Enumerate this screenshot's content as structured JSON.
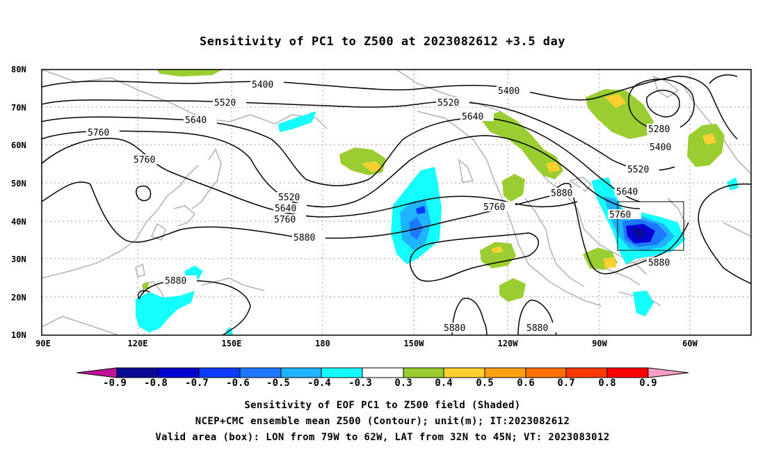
{
  "title": "Sensitivity of PC1 to Z500 at 2023082612 +3.5 day",
  "lat_labels": [
    "80N",
    "70N",
    "60N",
    "50N",
    "40N",
    "30N",
    "20N",
    "10N"
  ],
  "lon_labels": [
    "90E",
    "120E",
    "150E",
    "180",
    "150W",
    "120W",
    "90W",
    "60W"
  ],
  "contour_labels": {
    "c5400a": "5400",
    "c5400b": "5400",
    "c5400c": "5400",
    "c5520a": "5520",
    "c5520b": "5520",
    "c5520c": "5520",
    "c5520d": "5520",
    "c5640a": "5640",
    "c5640b": "5640",
    "c5640c": "5640",
    "c5640d": "5640",
    "c5760a": "5760",
    "c5760b": "5760",
    "c5760c": "5760",
    "c5760d": "5760",
    "c5760e": "5760",
    "c5880a": "5880",
    "c5880b": "5880",
    "c5880c": "5880",
    "c5880d": "5880",
    "c5880e": "5880",
    "c5880f": "5880",
    "c5280": "5280"
  },
  "colorbar": {
    "labels": [
      "-0.9",
      "-0.8",
      "-0.7",
      "-0.6",
      "-0.5",
      "-0.4",
      "-0.3",
      "0.3",
      "0.4",
      "0.5",
      "0.6",
      "0.7",
      "0.8",
      "0.9"
    ],
    "colors": [
      "#0a0a96",
      "#0000d2",
      "#0a3cff",
      "#1e78ff",
      "#1eb4ff",
      "#14ffff",
      "#ffffff",
      "#9acd32",
      "#ffd030",
      "#ffa010",
      "#ff7000",
      "#ff3a00",
      "#ff0000"
    ],
    "min_arrow_color": "#c0139a",
    "max_arrow_color": "#ff9ec6"
  },
  "caption": {
    "line1": "Sensitivity of EOF PC1 to Z500 field (Shaded)",
    "line2": "NCEP+CMC ensemble mean Z500 (Contour); unit(m); IT:2023082612",
    "line3": "Valid area (box): LON from 79W to 62W, LAT from 32N to 45N; VT: 2023083012"
  }
}
